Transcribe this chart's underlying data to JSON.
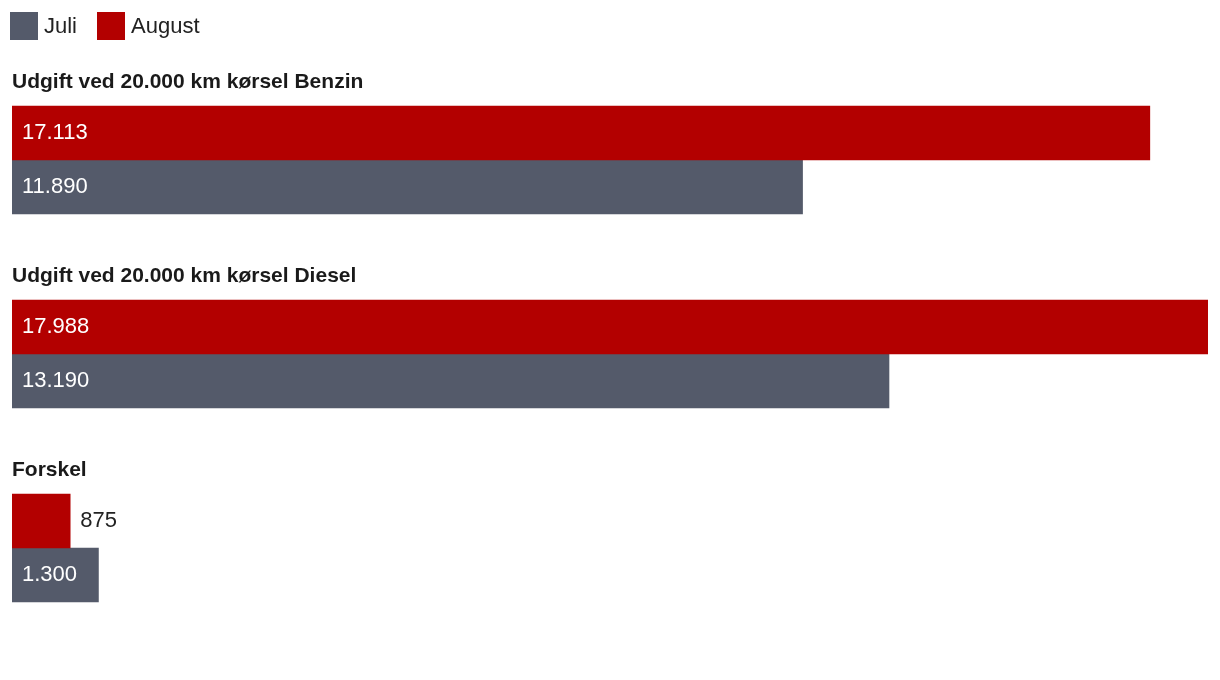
{
  "chart_data": {
    "type": "bar",
    "orientation": "horizontal",
    "legend": "top left",
    "categories": [
      "Udgift ved 20.000 km kørsel Benzin",
      "Udgift ved 20.000 km kørsel Diesel",
      "Forskel"
    ],
    "series": [
      {
        "name": "August",
        "color": "#b30000",
        "values": [
          17113,
          17988,
          875
        ],
        "value_labels": [
          "17.113",
          "17.988",
          "875"
        ]
      },
      {
        "name": "Juli",
        "color": "#545a6a",
        "values": [
          11890,
          13190,
          1300
        ],
        "value_labels": [
          "11.890",
          "13.190",
          "1.300"
        ]
      }
    ]
  }
}
